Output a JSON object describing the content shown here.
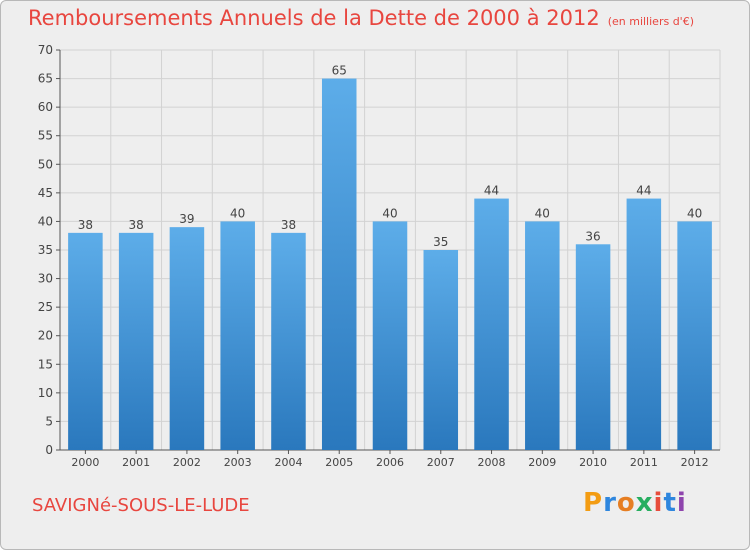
{
  "chart_data": {
    "type": "bar",
    "title": "Remboursements Annuels de la Dette de 2000 à 2012",
    "subtitle": "(en milliers d'€)",
    "categories": [
      "2000",
      "2001",
      "2002",
      "2003",
      "2004",
      "2005",
      "2006",
      "2007",
      "2008",
      "2009",
      "2010",
      "2011",
      "2012"
    ],
    "values": [
      38,
      38,
      39,
      40,
      38,
      65,
      40,
      35,
      44,
      40,
      36,
      44,
      40
    ],
    "yticks": [
      0,
      5,
      10,
      15,
      20,
      25,
      30,
      35,
      40,
      45,
      50,
      55,
      60,
      65,
      70
    ],
    "ylim": [
      0,
      70
    ],
    "xlabel": "",
    "ylabel": "",
    "grid": true,
    "data_labels": true,
    "bar_color": "#3e93d6",
    "title_color": "#e8463f"
  },
  "footer": {
    "commune": "SAVIGNé-SOUS-LE-LUDE"
  },
  "logo": {
    "letters": [
      "P",
      "r",
      "o",
      "x",
      "i",
      "t",
      "i"
    ],
    "colors": [
      "#f39c12",
      "#2e86de",
      "#e67e22",
      "#27ae60",
      "#e74c3c",
      "#2e86de",
      "#8e44ad"
    ]
  }
}
